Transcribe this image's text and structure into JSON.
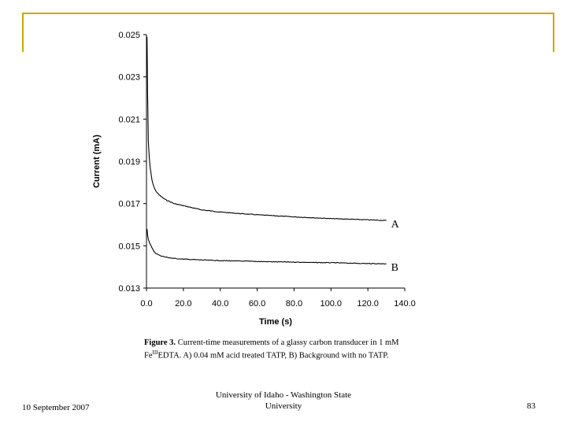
{
  "chart_data": {
    "type": "line",
    "xlabel": "Time (s)",
    "ylabel": "Current (mA)",
    "xlim": [
      0,
      140
    ],
    "ylim": [
      0.013,
      0.025
    ],
    "x_ticks": [
      "0.0",
      "20.0",
      "40.0",
      "60.0",
      "80.0",
      "100.0",
      "120.0",
      "140.0"
    ],
    "y_ticks": [
      "0.013",
      "0.015",
      "0.017",
      "0.019",
      "0.021",
      "0.023",
      "0.025"
    ],
    "grid": false,
    "series": [
      {
        "name": "A",
        "x": [
          0.3,
          0.6,
          1,
          1.5,
          2,
          3,
          4,
          5,
          7,
          10,
          15,
          20,
          30,
          40,
          50,
          60,
          70,
          80,
          90,
          100,
          110,
          120,
          130
        ],
        "y": [
          0.0249,
          0.0222,
          0.02,
          0.0192,
          0.0187,
          0.0181,
          0.0178,
          0.0176,
          0.0174,
          0.0172,
          0.017,
          0.0169,
          0.0167,
          0.0166,
          0.01653,
          0.01647,
          0.01642,
          0.01637,
          0.01633,
          0.01629,
          0.01626,
          0.01623,
          0.0162
        ]
      },
      {
        "name": "B",
        "x": [
          0.3,
          0.6,
          1,
          1.5,
          2,
          3,
          4,
          5,
          7,
          10,
          15,
          20,
          30,
          40,
          50,
          60,
          70,
          80,
          90,
          100,
          110,
          120,
          130
        ],
        "y": [
          0.0158,
          0.0155,
          0.0153,
          0.0152,
          0.01508,
          0.0149,
          0.01475,
          0.01465,
          0.01455,
          0.01447,
          0.0144,
          0.01437,
          0.01433,
          0.0143,
          0.01428,
          0.01426,
          0.01424,
          0.01423,
          0.01421,
          0.0142,
          0.01418,
          0.01416,
          0.01415
        ]
      }
    ]
  },
  "caption": {
    "label": "Figure 3.",
    "text": "Current-time measurements of a glassy carbon transducer in 1 mM Fe",
    "superscript": "III",
    "text_after": "EDTA. A) 0.04 mM acid treated TATP, B) Background with no TATP."
  },
  "footer": {
    "date": "10 September 2007",
    "center_line1": "University of Idaho - Washington State",
    "center_line2": "University",
    "page_number": "83"
  },
  "colors": {
    "frame": "#c8a800",
    "series": "#000000"
  }
}
